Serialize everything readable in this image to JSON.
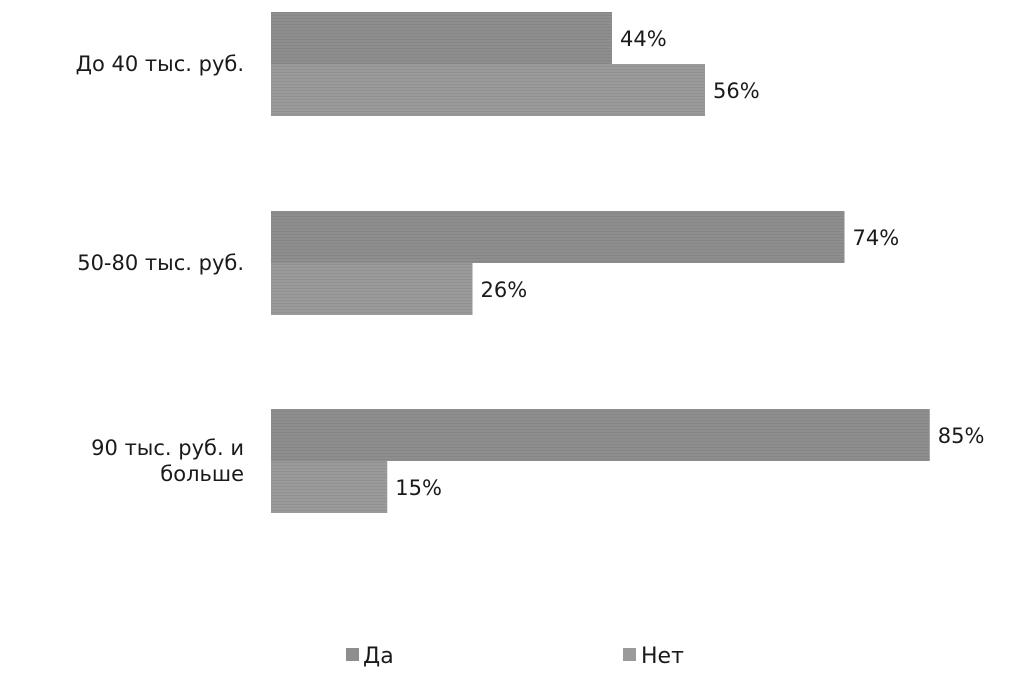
{
  "chart_data": {
    "type": "bar",
    "orientation": "horizontal",
    "categories": [
      [
        "До 40 тыс. руб."
      ],
      [
        "50-80 тыс. руб."
      ],
      [
        "90 тыс. руб. и",
        "больше"
      ]
    ],
    "series": [
      {
        "name": "Да",
        "values": [
          44,
          74,
          85
        ],
        "labels": [
          "44%",
          "74%",
          "85%"
        ]
      },
      {
        "name": "Нет",
        "values": [
          56,
          26,
          15
        ],
        "labels": [
          "56%",
          "26%",
          "15%"
        ]
      }
    ],
    "xlim": [
      0,
      100
    ],
    "grid": false,
    "legend_position": "bottom",
    "colors": {
      "Да": "#8e8e8e",
      "Нет": "#9a9a9a"
    }
  }
}
